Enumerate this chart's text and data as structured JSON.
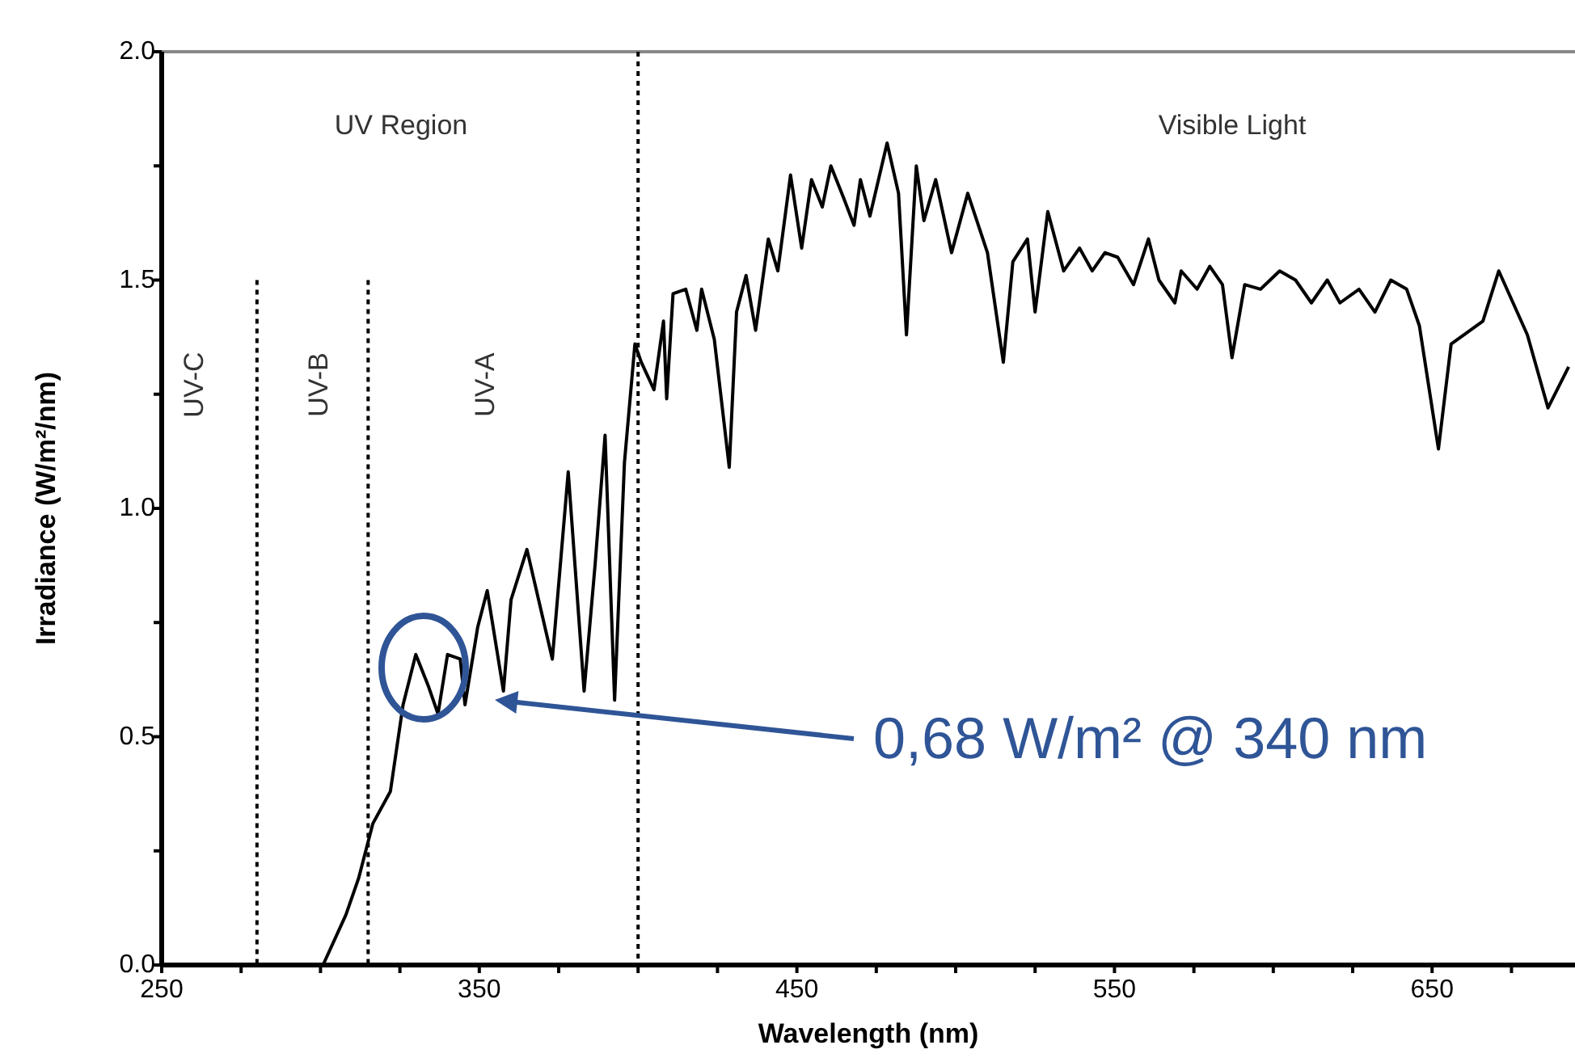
{
  "chart_data": {
    "type": "line",
    "xlabel": "Wavelength (nm)",
    "ylabel": "Irradiance (W/m²/nm)",
    "xlim": [
      250,
      695
    ],
    "ylim": [
      0,
      2
    ],
    "xticks": [
      250,
      {
        "value": 275,
        "label": null
      },
      {
        "value": 300,
        "label": null
      },
      {
        "value": 325,
        "label": null
      },
      350,
      {
        "value": 375,
        "label": null
      },
      {
        "value": 400,
        "label": null
      },
      {
        "value": 425,
        "label": null
      },
      450,
      {
        "value": 475,
        "label": null
      },
      {
        "value": 500,
        "label": null
      },
      {
        "value": 525,
        "label": null
      },
      550,
      {
        "value": 575,
        "label": null
      },
      {
        "value": 600,
        "label": null
      },
      {
        "value": 625,
        "label": null
      },
      650,
      {
        "value": 675,
        "label": null
      }
    ],
    "yticks": [
      {
        "value": 0,
        "label": "0.0"
      },
      {
        "value": 0.25,
        "label": null
      },
      {
        "value": 0.5,
        "label": "0.5"
      },
      {
        "value": 0.75,
        "label": null
      },
      {
        "value": 1,
        "label": "1.0"
      },
      {
        "value": 1.25,
        "label": null
      },
      {
        "value": 1.5,
        "label": "1.5"
      },
      {
        "value": 1.75,
        "label": null
      },
      {
        "value": 2,
        "label": "2.0"
      }
    ],
    "grid": false,
    "marker": "none",
    "line_style": "solid",
    "series": [
      {
        "color": "#000000",
        "x": [
          293.7,
          300.8,
          308,
          312,
          316.5,
          322,
          326,
          330,
          334,
          337,
          340,
          344,
          345.5,
          349.5,
          352.5,
          357.6,
          360,
          365,
          373,
          378,
          383,
          386.5,
          389.6,
          392.6,
          395.7,
          399,
          401,
          405,
          408,
          409,
          411,
          415,
          418.5,
          420,
          424,
          428.7,
          431,
          434,
          437,
          441,
          444,
          448,
          451.5,
          454.6,
          458,
          460.7,
          464.7,
          468,
          470,
          473,
          478.4,
          482,
          484.5,
          487.6,
          490,
          493.7,
          498.7,
          503.8,
          510,
          515,
          518,
          522.6,
          525,
          529,
          534,
          539,
          543,
          547,
          551,
          556,
          560.7,
          564,
          569,
          571,
          576,
          580,
          584,
          587,
          591,
          596,
          602,
          607,
          612,
          617,
          621,
          627,
          632,
          637,
          642,
          646,
          652,
          656,
          666,
          671,
          680,
          686.5,
          693
        ],
        "values": [
          0,
          0,
          0.11,
          0.19,
          0.31,
          0.38,
          0.57,
          0.68,
          0.61,
          0.55,
          0.68,
          0.67,
          0.57,
          0.74,
          0.82,
          0.6,
          0.8,
          0.91,
          0.67,
          1.08,
          0.6,
          0.88,
          1.16,
          0.58,
          1.1,
          1.36,
          1.32,
          1.26,
          1.41,
          1.24,
          1.47,
          1.48,
          1.39,
          1.48,
          1.37,
          1.09,
          1.43,
          1.51,
          1.39,
          1.59,
          1.52,
          1.73,
          1.57,
          1.72,
          1.66,
          1.75,
          1.68,
          1.62,
          1.72,
          1.64,
          1.8,
          1.69,
          1.38,
          1.75,
          1.63,
          1.72,
          1.56,
          1.69,
          1.56,
          1.32,
          1.54,
          1.59,
          1.43,
          1.65,
          1.52,
          1.57,
          1.52,
          1.56,
          1.55,
          1.49,
          1.59,
          1.5,
          1.45,
          1.52,
          1.48,
          1.53,
          1.49,
          1.33,
          1.49,
          1.48,
          1.52,
          1.5,
          1.45,
          1.5,
          1.45,
          1.48,
          1.43,
          1.5,
          1.48,
          1.4,
          1.13,
          1.36,
          1.41,
          1.52,
          1.38,
          1.22,
          1.31
        ]
      }
    ],
    "ref_lines": [
      {
        "axis": "x",
        "value": 280,
        "line_style": "dotted",
        "color": "#000000"
      },
      {
        "axis": "x",
        "value": 315,
        "line_style": "dotted",
        "color": "#000000"
      },
      {
        "axis": "x",
        "value": 400,
        "line_style": "dotted",
        "color": "#000000"
      }
    ],
    "annotations": [
      "UV Region",
      "Visible Light",
      "UV-C",
      "UV-B",
      "UV-A",
      "0,68 W/m² @ 340 nm"
    ]
  }
}
